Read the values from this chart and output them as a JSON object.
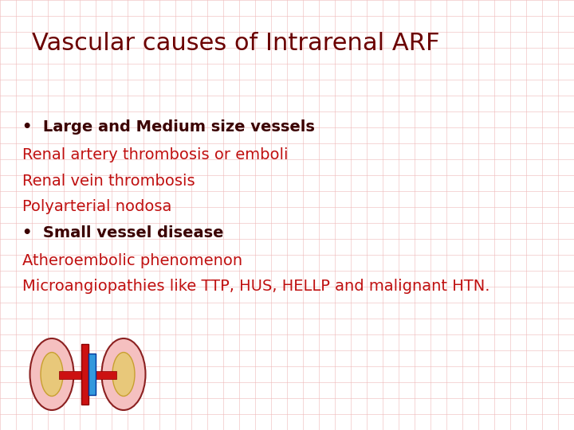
{
  "title": "Vascular causes of Intrarenal ARF",
  "title_color": "#6B0000",
  "title_fontsize": 22,
  "background_color": "#FFFFFF",
  "grid_color": "#EEB8B8",
  "bullet1_text": "•  Large and Medium size vessels",
  "bullet1_color": "#3B0000",
  "line1_text": "Renal artery thrombosis or emboli",
  "line1_color": "#C01010",
  "line2_text": "Renal vein thrombosis",
  "line2_color": "#C01010",
  "line3_text": "Polyarterial nodosa",
  "line3_color": "#C01010",
  "bullet2_text": "•  Small vessel disease",
  "bullet2_color": "#3B0000",
  "line4_text": "Atheroembolic phenomenon",
  "line4_color": "#C01010",
  "line5_text": "Microangiopathies like TTP, HUS, HELLP and malignant HTN.",
  "line5_color": "#C01010",
  "content_fontsize": 14,
  "figsize": [
    7.2,
    5.4
  ],
  "dpi": 100
}
